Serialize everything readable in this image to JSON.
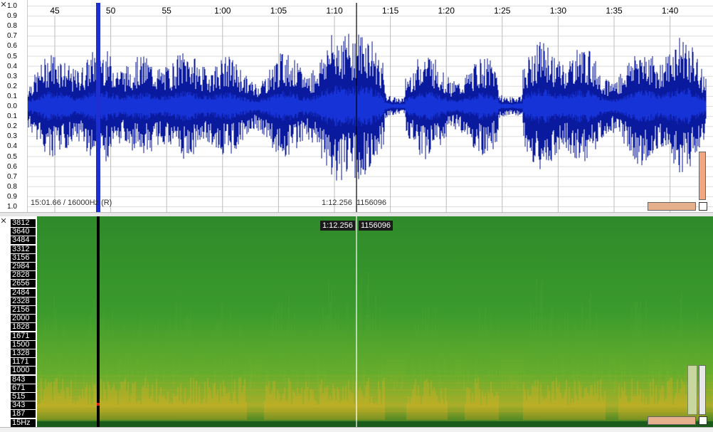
{
  "waveform": {
    "time_labels": [
      "45",
      "50",
      "55",
      "1:00",
      "1:05",
      "1:10",
      "1:15",
      "1:20",
      "1:25",
      "1:30",
      "1:35",
      "1:40"
    ],
    "amplitude_labels": [
      "1.0",
      "0.9",
      "0.8",
      "0.7",
      "0.6",
      "0.5",
      "0.4",
      "0.3",
      "0.2",
      "0.1",
      "0.0",
      "0.1",
      "0.2",
      "0.3",
      "0.4",
      "0.5",
      "0.6",
      "0.7",
      "0.8",
      "0.9",
      "1.0"
    ],
    "status_left": "15:01.66 / 16000Hz (R)",
    "cursor_time": "1:12.256",
    "cursor_sample": "1156096",
    "wave_color": "#0a1a9e",
    "selection_color": "#1d2fd0"
  },
  "spectrogram": {
    "freq_labels": [
      "3812",
      "3640",
      "3484",
      "3312",
      "3156",
      "2984",
      "2828",
      "2656",
      "2484",
      "2328",
      "2156",
      "2000",
      "1828",
      "1671",
      "1500",
      "1328",
      "1171",
      "1000",
      "843",
      "671",
      "515",
      "343",
      "187",
      "15Hz"
    ],
    "cursor_time": "1:12.256",
    "cursor_sample": "1156096",
    "base_color": "#2a8a22",
    "hot_color": "#e0b020"
  },
  "controls": {
    "close_icon_top": "close-icon",
    "close_icon_spec": "close-icon"
  }
}
